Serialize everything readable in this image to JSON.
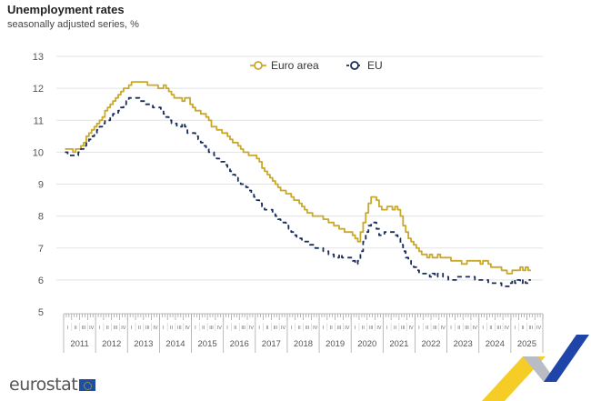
{
  "chart_data": {
    "type": "line",
    "title": "Unemployment rates",
    "subtitle": "seasonally adjusted series, %",
    "frequency": "monthly",
    "start": "2011-01",
    "end": "2025-08",
    "ylim": [
      5,
      13
    ],
    "yticks": [
      5,
      6,
      7,
      8,
      9,
      10,
      11,
      12,
      13
    ],
    "years": [
      "2011",
      "2012",
      "2013",
      "2014",
      "2015",
      "2016",
      "2017",
      "2018",
      "2019",
      "2020",
      "2021",
      "2022",
      "2023",
      "2024",
      "2025"
    ],
    "quarter_labels": [
      "I",
      "II",
      "III",
      "IV"
    ],
    "grid": true,
    "legend_position": "top-center",
    "series": [
      {
        "name": "Euro area",
        "color": "#c9a82c",
        "style": "solid",
        "values": [
          10.1,
          10.1,
          10.1,
          10.0,
          10.1,
          10.1,
          10.2,
          10.3,
          10.5,
          10.6,
          10.7,
          10.8,
          10.9,
          11.0,
          11.1,
          11.3,
          11.4,
          11.5,
          11.6,
          11.7,
          11.8,
          11.9,
          12.0,
          12.0,
          12.1,
          12.2,
          12.2,
          12.2,
          12.2,
          12.2,
          12.2,
          12.1,
          12.1,
          12.1,
          12.1,
          12.0,
          12.0,
          12.1,
          12.0,
          11.9,
          11.8,
          11.7,
          11.7,
          11.7,
          11.6,
          11.7,
          11.7,
          11.5,
          11.4,
          11.3,
          11.3,
          11.2,
          11.2,
          11.1,
          11.0,
          10.8,
          10.8,
          10.7,
          10.7,
          10.6,
          10.6,
          10.5,
          10.4,
          10.3,
          10.3,
          10.2,
          10.1,
          10.0,
          10.0,
          9.9,
          9.9,
          9.9,
          9.8,
          9.7,
          9.5,
          9.4,
          9.3,
          9.2,
          9.1,
          9.0,
          8.9,
          8.8,
          8.8,
          8.7,
          8.7,
          8.6,
          8.5,
          8.5,
          8.4,
          8.3,
          8.2,
          8.1,
          8.1,
          8.0,
          8.0,
          8.0,
          8.0,
          7.9,
          7.9,
          7.8,
          7.8,
          7.7,
          7.7,
          7.6,
          7.6,
          7.5,
          7.5,
          7.5,
          7.4,
          7.3,
          7.2,
          7.5,
          7.8,
          8.1,
          8.4,
          8.6,
          8.6,
          8.5,
          8.3,
          8.2,
          8.2,
          8.3,
          8.3,
          8.2,
          8.3,
          8.2,
          8.0,
          7.7,
          7.5,
          7.3,
          7.2,
          7.1,
          7.0,
          6.9,
          6.8,
          6.8,
          6.7,
          6.8,
          6.7,
          6.7,
          6.8,
          6.7,
          6.7,
          6.7,
          6.7,
          6.6,
          6.6,
          6.6,
          6.6,
          6.5,
          6.5,
          6.6,
          6.6,
          6.6,
          6.6,
          6.6,
          6.5,
          6.6,
          6.6,
          6.5,
          6.4,
          6.4,
          6.4,
          6.4,
          6.3,
          6.3,
          6.2,
          6.2,
          6.3,
          6.3,
          6.3,
          6.4,
          6.3,
          6.4,
          6.3,
          6.3
        ]
      },
      {
        "name": "EU",
        "color": "#1a2d5a",
        "style": "dashed",
        "values": [
          10.0,
          9.9,
          9.9,
          9.9,
          9.9,
          10.0,
          10.1,
          10.2,
          10.3,
          10.4,
          10.5,
          10.6,
          10.7,
          10.8,
          10.9,
          11.0,
          11.0,
          11.1,
          11.2,
          11.2,
          11.3,
          11.4,
          11.5,
          11.6,
          11.7,
          11.7,
          11.7,
          11.7,
          11.6,
          11.6,
          11.5,
          11.5,
          11.5,
          11.4,
          11.4,
          11.4,
          11.3,
          11.2,
          11.1,
          11.0,
          10.9,
          10.9,
          10.8,
          10.8,
          10.9,
          10.8,
          10.6,
          10.6,
          10.6,
          10.5,
          10.4,
          10.3,
          10.2,
          10.1,
          10.0,
          10.0,
          9.9,
          9.8,
          9.7,
          9.7,
          9.6,
          9.5,
          9.4,
          9.3,
          9.2,
          9.1,
          9.0,
          9.0,
          8.9,
          8.8,
          8.7,
          8.6,
          8.5,
          8.4,
          8.3,
          8.2,
          8.2,
          8.2,
          8.1,
          8.0,
          7.9,
          7.8,
          7.8,
          7.7,
          7.6,
          7.5,
          7.4,
          7.3,
          7.3,
          7.2,
          7.2,
          7.2,
          7.1,
          7.1,
          7.0,
          7.0,
          7.0,
          6.9,
          6.9,
          6.8,
          6.8,
          6.7,
          6.7,
          6.8,
          6.7,
          6.7,
          6.7,
          6.7,
          6.6,
          6.5,
          6.6,
          6.9,
          7.2,
          7.5,
          7.7,
          7.8,
          7.8,
          7.6,
          7.4,
          7.4,
          7.5,
          7.5,
          7.5,
          7.5,
          7.4,
          7.3,
          7.1,
          6.9,
          6.7,
          6.6,
          6.5,
          6.4,
          6.3,
          6.2,
          6.2,
          6.2,
          6.2,
          6.1,
          6.2,
          6.1,
          6.2,
          6.2,
          6.1,
          6.1,
          6.0,
          6.0,
          6.0,
          6.1,
          6.1,
          6.1,
          6.1,
          6.1,
          6.1,
          6.1,
          6.0,
          6.0,
          6.0,
          6.0,
          6.0,
          5.9,
          5.9,
          5.9,
          5.9,
          5.9,
          5.8,
          5.8,
          5.8,
          5.9,
          6.0,
          5.9,
          6.0,
          5.9,
          6.0,
          5.9,
          6.0,
          6.0
        ]
      }
    ]
  },
  "branding": {
    "logo_text": "eurostat"
  }
}
